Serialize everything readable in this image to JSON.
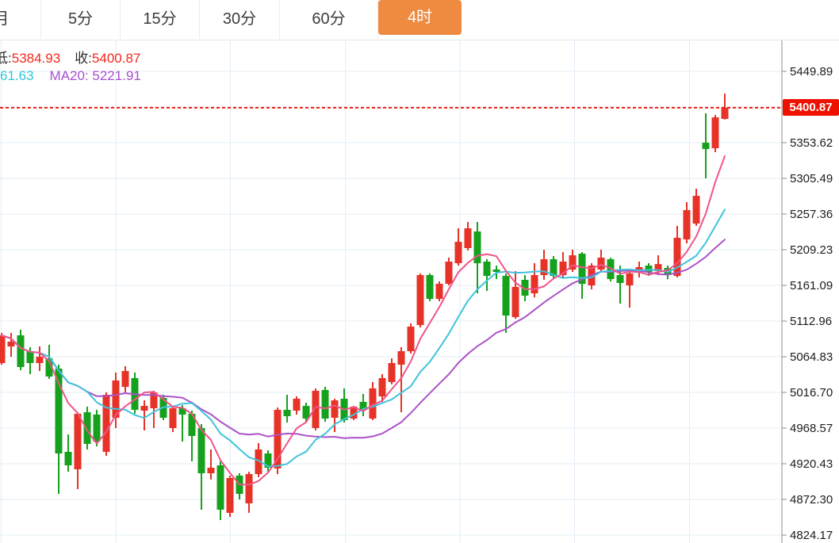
{
  "toolbar": {
    "tabs": [
      {
        "label": "月",
        "selected": false
      },
      {
        "label": "5分",
        "selected": false
      },
      {
        "label": "15分",
        "selected": false
      },
      {
        "label": "30分",
        "selected": false
      },
      {
        "label": "60分",
        "selected": false
      },
      {
        "label": "4时",
        "selected": true
      }
    ]
  },
  "info": {
    "line1": [
      {
        "label": "低:",
        "value": "5384.93"
      },
      {
        "label": "收:",
        "value": "5400.87"
      }
    ],
    "line2": {
      "ma10_partial": "61.63",
      "ma20": "MA20: 5221.91"
    }
  },
  "axis": {
    "labels": [
      "5449.89",
      "5353.62",
      "5305.49",
      "5257.36",
      "5209.23",
      "5161.09",
      "5112.96",
      "5064.83",
      "5016.70",
      "4968.57",
      "4920.43",
      "4872.30",
      "4824.17"
    ],
    "price_tag": "5400.87"
  },
  "colors": {
    "accent_orange": "#ef8b41",
    "up_red": "#e73227",
    "down_green": "#15a11c",
    "ma5_pink": "#f0548a",
    "ma10_cyan": "#3fc3dd",
    "ma20_purple": "#ad52c8",
    "grid": "#e3edf6",
    "axis_line": "#8c8c8c",
    "label_text": "#1c1c1c",
    "price_line": "#f01b0e",
    "tag_bg": "#ee1100",
    "info_red": "#f5271c",
    "info_cyan": "#2fc5d8",
    "info_purple": "#a94fd0",
    "info_dark": "#2e2e2e"
  },
  "chart_data": {
    "type": "candlestick",
    "title": "",
    "interval_selected": "4时",
    "current_price": 5400.87,
    "low_display": 5384.93,
    "close_display": 5400.87,
    "ma20_display": 5221.91,
    "y_axis": {
      "top_label": 5449.89,
      "bottom_label": 4824.17,
      "label_step": 48.13,
      "grid": true
    },
    "ma_series": [
      {
        "name": "MA5",
        "period": 5,
        "color_key": "ma5_pink"
      },
      {
        "name": "MA10",
        "period": 10,
        "color_key": "ma10_cyan"
      },
      {
        "name": "MA20",
        "period": 20,
        "color_key": "ma20_purple"
      }
    ],
    "candles_format": [
      "open",
      "high",
      "low",
      "close"
    ],
    "candles": [
      [
        5056.3,
        5096.9,
        5054.1,
        5093.7
      ],
      [
        5078.7,
        5096.9,
        5064.8,
        5085.2
      ],
      [
        5093.7,
        5101.2,
        5046.6,
        5050.9
      ],
      [
        5072.3,
        5077.7,
        5041.3,
        5056.3
      ],
      [
        5056.3,
        5078.7,
        5045.6,
        5064.8
      ],
      [
        5062.7,
        5080.9,
        5034.9,
        5038.1
      ],
      [
        5048.8,
        5054.1,
        4879.8,
        4934.3
      ],
      [
        4936.5,
        4960.0,
        4909.7,
        4918.3
      ],
      [
        4913.0,
        4990.0,
        4886.3,
        4987.9
      ],
      [
        4990.0,
        4997.5,
        4939.7,
        4947.2
      ],
      [
        4986.8,
        4993.2,
        4944.0,
        4950.4
      ],
      [
        4936.5,
        5016.7,
        4931.1,
        5013.5
      ],
      [
        4982.5,
        5043.5,
        4968.6,
        5032.8
      ],
      [
        5024.2,
        5052.0,
        5016.7,
        5045.6
      ],
      [
        5036.0,
        5043.5,
        4987.9,
        4993.2
      ],
      [
        4992.1,
        5006.0,
        4965.4,
        4998.5
      ],
      [
        4995.3,
        5018.9,
        4968.6,
        5016.7
      ],
      [
        5009.2,
        5013.5,
        4979.3,
        4982.5
      ],
      [
        4968.6,
        4998.5,
        4963.2,
        4995.3
      ],
      [
        4995.3,
        4999.6,
        4950.4,
        4986.8
      ],
      [
        4987.9,
        4992.1,
        4923.7,
        4957.9
      ],
      [
        4968.6,
        4974.0,
        4858.4,
        4907.6
      ],
      [
        4907.6,
        4939.7,
        4899.1,
        4915.1
      ],
      [
        4918.3,
        4923.7,
        4844.5,
        4858.4
      ],
      [
        4854.2,
        4904.4,
        4848.8,
        4901.2
      ],
      [
        4904.4,
        4907.6,
        4872.3,
        4879.8
      ],
      [
        4867.0,
        4909.7,
        4854.2,
        4906.5
      ],
      [
        4906.5,
        4948.3,
        4902.3,
        4939.7
      ],
      [
        4934.3,
        4938.6,
        4909.7,
        4915.1
      ],
      [
        4914.1,
        4996.4,
        4906.5,
        4993.2
      ],
      [
        4993.2,
        5013.5,
        4976.1,
        4984.6
      ],
      [
        4992.1,
        5011.4,
        4986.8,
        5008.2
      ],
      [
        4998.5,
        5002.8,
        4976.1,
        4981.4
      ],
      [
        4968.6,
        5022.1,
        4965.4,
        5018.9
      ],
      [
        5020.0,
        5024.2,
        4977.1,
        4981.4
      ],
      [
        4982.5,
        5008.2,
        4963.2,
        5006.0
      ],
      [
        5008.2,
        5022.1,
        4976.1,
        4979.3
      ],
      [
        4981.4,
        4998.5,
        4979.3,
        4997.5
      ],
      [
        5003.9,
        5014.6,
        4984.6,
        4993.2
      ],
      [
        4981.4,
        5030.7,
        4979.3,
        5022.1
      ],
      [
        5011.4,
        5041.4,
        5003.9,
        5036.0
      ],
      [
        5030.7,
        5062.7,
        5027.5,
        5056.3
      ],
      [
        5054.1,
        5077.7,
        4990.0,
        5072.3
      ],
      [
        5072.3,
        5109.8,
        5069.1,
        5105.5
      ],
      [
        5107.6,
        5177.2,
        5104.4,
        5175.0
      ],
      [
        5175.0,
        5177.2,
        5139.7,
        5142.9
      ],
      [
        5142.9,
        5166.4,
        5139.7,
        5163.2
      ],
      [
        5163.2,
        5198.5,
        5161.1,
        5193.2
      ],
      [
        5191.0,
        5238.1,
        5187.8,
        5219.9
      ],
      [
        5211.4,
        5246.7,
        5208.2,
        5238.1
      ],
      [
        5233.8,
        5246.7,
        5150.4,
        5191.0
      ],
      [
        5193.2,
        5196.4,
        5153.6,
        5173.9
      ],
      [
        5182.5,
        5187.8,
        5169.6,
        5179.3
      ],
      [
        5173.9,
        5177.2,
        5096.9,
        5120.4
      ],
      [
        5118.3,
        5180.4,
        5116.1,
        5159.0
      ],
      [
        5168.6,
        5175.0,
        5139.7,
        5147.2
      ],
      [
        5150.4,
        5191.0,
        5144.9,
        5175.0
      ],
      [
        5175.0,
        5209.2,
        5168.6,
        5196.4
      ],
      [
        5196.4,
        5200.6,
        5169.6,
        5173.9
      ],
      [
        5175.0,
        5206.0,
        5171.8,
        5193.2
      ],
      [
        5182.5,
        5209.2,
        5179.3,
        5201.7
      ],
      [
        5203.9,
        5206.0,
        5142.9,
        5163.2
      ],
      [
        5161.1,
        5191.0,
        5155.7,
        5187.8
      ],
      [
        5182.5,
        5209.2,
        5179.3,
        5198.5
      ],
      [
        5196.4,
        5198.5,
        5166.4,
        5169.6
      ],
      [
        5175.0,
        5187.8,
        5136.5,
        5164.3
      ],
      [
        5161.1,
        5179.3,
        5131.1,
        5177.2
      ],
      [
        5179.3,
        5193.2,
        5171.8,
        5185.7
      ],
      [
        5187.8,
        5191.0,
        5173.9,
        5179.3
      ],
      [
        5180.4,
        5201.7,
        5175.0,
        5189.9
      ],
      [
        5184.6,
        5187.8,
        5169.6,
        5175.0
      ],
      [
        5173.9,
        5241.4,
        5171.8,
        5225.3
      ],
      [
        5223.2,
        5273.4,
        5217.8,
        5262.7
      ],
      [
        5244.5,
        5291.6,
        5241.4,
        5281.9
      ],
      [
        5353.6,
        5393.2,
        5305.5,
        5345.1
      ],
      [
        5346.1,
        5391.0,
        5340.8,
        5387.8
      ],
      [
        5385.7,
        5419.9,
        5384.93,
        5400.87
      ]
    ]
  }
}
